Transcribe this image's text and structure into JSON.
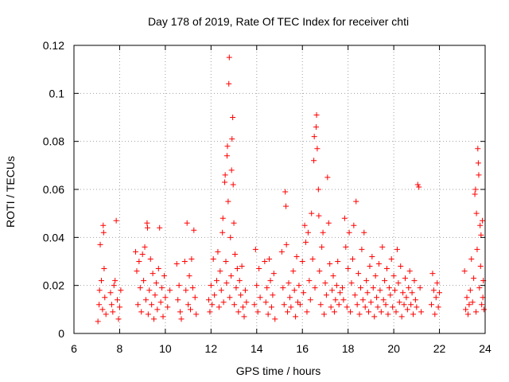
{
  "chart_data": {
    "type": "scatter",
    "title": "Day 178 of 2019, Rate Of TEC Index for receiver chti",
    "xlabel": "GPS time / hours",
    "ylabel": "ROTI / TECUs",
    "xlim": [
      6,
      24
    ],
    "ylim": [
      0,
      0.12
    ],
    "xticks": [
      6,
      8,
      10,
      12,
      14,
      16,
      18,
      20,
      22,
      24
    ],
    "yticks": [
      0,
      0.02,
      0.04,
      0.06,
      0.08,
      0.1,
      0.12
    ],
    "xtick_labels": [
      "6",
      "8",
      "10",
      "12",
      "14",
      "16",
      "18",
      "20",
      "22",
      "24"
    ],
    "ytick_labels": [
      "0",
      "0.02",
      "0.04",
      "0.06",
      "0.08",
      "0.1",
      "0.12"
    ],
    "grid": true,
    "marker": "+",
    "color": "#ff0000",
    "series": [
      {
        "name": "ROTI",
        "points": [
          [
            7.05,
            0.005
          ],
          [
            7.1,
            0.012
          ],
          [
            7.12,
            0.018
          ],
          [
            7.15,
            0.037
          ],
          [
            7.2,
            0.022
          ],
          [
            7.25,
            0.01
          ],
          [
            7.28,
            0.045
          ],
          [
            7.3,
            0.042
          ],
          [
            7.35,
            0.015
          ],
          [
            7.32,
            0.027
          ],
          [
            7.4,
            0.008
          ],
          [
            7.6,
            0.017
          ],
          [
            7.65,
            0.012
          ],
          [
            7.7,
            0.009
          ],
          [
            7.75,
            0.02
          ],
          [
            7.8,
            0.022
          ],
          [
            7.85,
            0.047
          ],
          [
            7.9,
            0.014
          ],
          [
            7.95,
            0.006
          ],
          [
            8.0,
            0.011
          ],
          [
            8.05,
            0.018
          ],
          [
            8.7,
            0.034
          ],
          [
            8.75,
            0.026
          ],
          [
            8.8,
            0.012
          ],
          [
            8.85,
            0.03
          ],
          [
            8.9,
            0.019
          ],
          [
            8.95,
            0.009
          ],
          [
            9.0,
            0.033
          ],
          [
            9.05,
            0.022
          ],
          [
            9.1,
            0.036
          ],
          [
            9.15,
            0.014
          ],
          [
            9.2,
            0.046
          ],
          [
            9.22,
            0.044
          ],
          [
            9.25,
            0.008
          ],
          [
            9.3,
            0.018
          ],
          [
            9.35,
            0.031
          ],
          [
            9.4,
            0.012
          ],
          [
            9.45,
            0.025
          ],
          [
            9.5,
            0.006
          ],
          [
            9.55,
            0.016
          ],
          [
            9.6,
            0.021
          ],
          [
            9.65,
            0.01
          ],
          [
            9.7,
            0.027
          ],
          [
            9.75,
            0.044
          ],
          [
            9.8,
            0.013
          ],
          [
            9.85,
            0.019
          ],
          [
            9.9,
            0.007
          ],
          [
            9.95,
            0.024
          ],
          [
            10.0,
            0.015
          ],
          [
            10.1,
            0.011
          ],
          [
            10.2,
            0.018
          ],
          [
            10.5,
            0.029
          ],
          [
            10.55,
            0.014
          ],
          [
            10.6,
            0.02
          ],
          [
            10.65,
            0.009
          ],
          [
            10.7,
            0.006
          ],
          [
            10.85,
            0.03
          ],
          [
            10.9,
            0.018
          ],
          [
            10.95,
            0.046
          ],
          [
            11.0,
            0.012
          ],
          [
            11.05,
            0.024
          ],
          [
            11.1,
            0.01
          ],
          [
            11.15,
            0.031
          ],
          [
            11.2,
            0.019
          ],
          [
            11.25,
            0.043
          ],
          [
            11.3,
            0.015
          ],
          [
            11.35,
            0.008
          ],
          [
            11.9,
            0.014
          ],
          [
            11.95,
            0.009
          ],
          [
            12.0,
            0.02
          ],
          [
            12.05,
            0.012
          ],
          [
            12.1,
            0.031
          ],
          [
            12.15,
            0.016
          ],
          [
            12.25,
            0.022
          ],
          [
            12.3,
            0.034
          ],
          [
            12.35,
            0.011
          ],
          [
            12.4,
            0.026
          ],
          [
            12.45,
            0.018
          ],
          [
            12.5,
            0.042
          ],
          [
            12.52,
            0.048
          ],
          [
            12.55,
            0.013
          ],
          [
            12.6,
            0.063
          ],
          [
            12.62,
            0.066
          ],
          [
            12.65,
            0.03
          ],
          [
            12.68,
            0.021
          ],
          [
            12.7,
            0.074
          ],
          [
            12.72,
            0.078
          ],
          [
            12.75,
            0.055
          ],
          [
            12.78,
            0.104
          ],
          [
            12.8,
            0.115
          ],
          [
            12.82,
            0.015
          ],
          [
            12.85,
            0.04
          ],
          [
            12.88,
            0.024
          ],
          [
            12.9,
            0.068
          ],
          [
            12.92,
            0.081
          ],
          [
            12.95,
            0.09
          ],
          [
            12.97,
            0.062
          ],
          [
            13.0,
            0.046
          ],
          [
            13.02,
            0.012
          ],
          [
            13.05,
            0.033
          ],
          [
            13.1,
            0.019
          ],
          [
            13.15,
            0.027
          ],
          [
            13.2,
            0.009
          ],
          [
            13.25,
            0.022
          ],
          [
            13.3,
            0.016
          ],
          [
            13.35,
            0.028
          ],
          [
            13.4,
            0.011
          ],
          [
            13.45,
            0.007
          ],
          [
            13.5,
            0.018
          ],
          [
            13.55,
            0.013
          ],
          [
            13.9,
            0.012
          ],
          [
            13.95,
            0.035
          ],
          [
            14.0,
            0.02
          ],
          [
            14.05,
            0.009
          ],
          [
            14.1,
            0.027
          ],
          [
            14.15,
            0.015
          ],
          [
            14.35,
            0.03
          ],
          [
            14.4,
            0.013
          ],
          [
            14.45,
            0.019
          ],
          [
            14.5,
            0.008
          ],
          [
            14.55,
            0.031
          ],
          [
            14.6,
            0.022
          ],
          [
            14.65,
            0.011
          ],
          [
            14.7,
            0.016
          ],
          [
            14.75,
            0.025
          ],
          [
            14.8,
            0.006
          ],
          [
            15.1,
            0.034
          ],
          [
            15.15,
            0.019
          ],
          [
            15.2,
            0.012
          ],
          [
            15.25,
            0.059
          ],
          [
            15.28,
            0.053
          ],
          [
            15.3,
            0.037
          ],
          [
            15.35,
            0.009
          ],
          [
            15.4,
            0.021
          ],
          [
            15.45,
            0.015
          ],
          [
            15.5,
            0.011
          ],
          [
            15.6,
            0.026
          ],
          [
            15.65,
            0.018
          ],
          [
            15.7,
            0.007
          ],
          [
            15.75,
            0.032
          ],
          [
            15.8,
            0.013
          ],
          [
            15.85,
            0.02
          ],
          [
            15.9,
            0.012
          ],
          [
            16.0,
            0.03
          ],
          [
            16.05,
            0.017
          ],
          [
            16.1,
            0.045
          ],
          [
            16.15,
            0.038
          ],
          [
            16.2,
            0.009
          ],
          [
            16.25,
            0.042
          ],
          [
            16.3,
            0.022
          ],
          [
            16.35,
            0.014
          ],
          [
            16.4,
            0.05
          ],
          [
            16.45,
            0.031
          ],
          [
            16.5,
            0.072
          ],
          [
            16.52,
            0.082
          ],
          [
            16.55,
            0.019
          ],
          [
            16.6,
            0.086
          ],
          [
            16.62,
            0.091
          ],
          [
            16.65,
            0.077
          ],
          [
            16.7,
            0.06
          ],
          [
            16.72,
            0.049
          ],
          [
            16.75,
            0.026
          ],
          [
            16.8,
            0.012
          ],
          [
            16.85,
            0.036
          ],
          [
            16.9,
            0.042
          ],
          [
            16.95,
            0.008
          ],
          [
            17.0,
            0.021
          ],
          [
            17.05,
            0.016
          ],
          [
            17.1,
            0.065
          ],
          [
            17.15,
            0.046
          ],
          [
            17.2,
            0.029
          ],
          [
            17.25,
            0.011
          ],
          [
            17.3,
            0.018
          ],
          [
            17.35,
            0.024
          ],
          [
            17.4,
            0.009
          ],
          [
            17.45,
            0.014
          ],
          [
            17.5,
            0.02
          ],
          [
            17.55,
            0.03
          ],
          [
            17.6,
            0.012
          ],
          [
            17.65,
            0.017
          ],
          [
            17.75,
            0.019
          ],
          [
            17.8,
            0.014
          ],
          [
            17.85,
            0.048
          ],
          [
            17.9,
            0.036
          ],
          [
            17.95,
            0.011
          ],
          [
            18.0,
            0.027
          ],
          [
            18.05,
            0.042
          ],
          [
            18.1,
            0.009
          ],
          [
            18.15,
            0.021
          ],
          [
            18.2,
            0.031
          ],
          [
            18.25,
            0.045
          ],
          [
            18.3,
            0.016
          ],
          [
            18.35,
            0.055
          ],
          [
            18.4,
            0.012
          ],
          [
            18.45,
            0.025
          ],
          [
            18.5,
            0.008
          ],
          [
            18.55,
            0.019
          ],
          [
            18.6,
            0.035
          ],
          [
            18.65,
            0.014
          ],
          [
            18.7,
            0.042
          ],
          [
            18.75,
            0.011
          ],
          [
            18.8,
            0.022
          ],
          [
            18.85,
            0.017
          ],
          [
            18.9,
            0.009
          ],
          [
            18.95,
            0.028
          ],
          [
            19.0,
            0.013
          ],
          [
            19.05,
            0.032
          ],
          [
            19.1,
            0.019
          ],
          [
            19.15,
            0.007
          ],
          [
            19.2,
            0.024
          ],
          [
            19.25,
            0.015
          ],
          [
            19.3,
            0.011
          ],
          [
            19.35,
            0.029
          ],
          [
            19.4,
            0.018
          ],
          [
            19.45,
            0.009
          ],
          [
            19.5,
            0.036
          ],
          [
            19.55,
            0.014
          ],
          [
            19.6,
            0.022
          ],
          [
            19.65,
            0.012
          ],
          [
            19.7,
            0.027
          ],
          [
            19.75,
            0.008
          ],
          [
            19.8,
            0.019
          ],
          [
            19.85,
            0.016
          ],
          [
            19.9,
            0.031
          ],
          [
            19.95,
            0.011
          ],
          [
            20.0,
            0.024
          ],
          [
            20.05,
            0.018
          ],
          [
            20.1,
            0.009
          ],
          [
            20.15,
            0.035
          ],
          [
            20.2,
            0.021
          ],
          [
            20.25,
            0.013
          ],
          [
            20.3,
            0.028
          ],
          [
            20.35,
            0.007
          ],
          [
            20.4,
            0.017
          ],
          [
            20.45,
            0.012
          ],
          [
            20.5,
            0.023
          ],
          [
            20.55,
            0.015
          ],
          [
            20.6,
            0.01
          ],
          [
            20.65,
            0.019
          ],
          [
            20.7,
            0.026
          ],
          [
            20.75,
            0.012
          ],
          [
            20.8,
            0.017
          ],
          [
            20.85,
            0.008
          ],
          [
            20.9,
            0.022
          ],
          [
            20.95,
            0.014
          ],
          [
            21.0,
            0.011
          ],
          [
            21.05,
            0.062
          ],
          [
            21.1,
            0.061
          ],
          [
            21.15,
            0.019
          ],
          [
            21.2,
            0.009
          ],
          [
            21.65,
            0.012
          ],
          [
            21.7,
            0.025
          ],
          [
            21.75,
            0.018
          ],
          [
            21.8,
            0.008
          ],
          [
            21.85,
            0.015
          ],
          [
            21.9,
            0.021
          ],
          [
            21.95,
            0.011
          ],
          [
            22.0,
            0.017
          ],
          [
            23.1,
            0.026
          ],
          [
            23.15,
            0.01
          ],
          [
            23.2,
            0.015
          ],
          [
            23.25,
            0.008
          ],
          [
            23.3,
            0.012
          ],
          [
            23.35,
            0.018
          ],
          [
            23.4,
            0.031
          ],
          [
            23.45,
            0.013
          ],
          [
            23.5,
            0.023
          ],
          [
            23.55,
            0.058
          ],
          [
            23.58,
            0.06
          ],
          [
            23.6,
            0.009
          ],
          [
            23.62,
            0.05
          ],
          [
            23.65,
            0.035
          ],
          [
            23.68,
            0.077
          ],
          [
            23.7,
            0.071
          ],
          [
            23.72,
            0.066
          ],
          [
            23.75,
            0.019
          ],
          [
            23.78,
            0.045
          ],
          [
            23.8,
            0.028
          ],
          [
            23.82,
            0.041
          ],
          [
            23.85,
            0.012
          ],
          [
            23.88,
            0.047
          ],
          [
            23.9,
            0.015
          ],
          [
            23.92,
            0.022
          ],
          [
            23.95,
            0.01
          ]
        ]
      }
    ]
  }
}
